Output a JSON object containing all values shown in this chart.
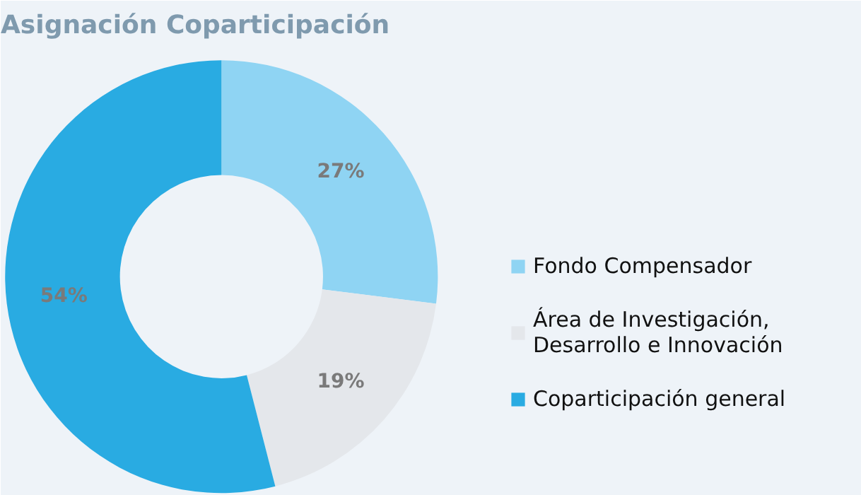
{
  "chart_data": {
    "type": "donut",
    "title": "Asignación Coparticipación",
    "categories": [
      "Fondo Compensador",
      "Área de Investigación, Desarrollo e Innovación",
      "Coparticipación general"
    ],
    "values": [
      27,
      19,
      54
    ],
    "colors": [
      "#8fd4f3",
      "#e4e7eb",
      "#29abe2"
    ],
    "value_labels": [
      "27%",
      "19%",
      "54%"
    ],
    "legend": "right"
  }
}
